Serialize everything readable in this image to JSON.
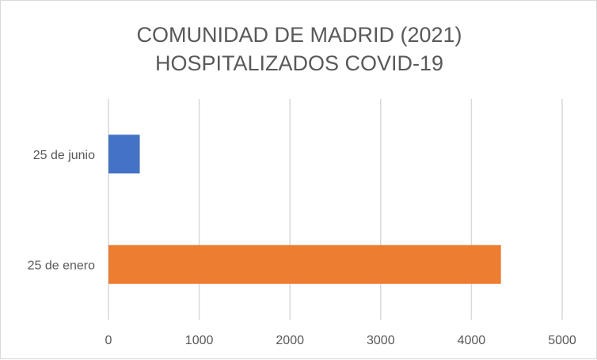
{
  "chart_data": {
    "type": "bar",
    "orientation": "horizontal",
    "title": [
      "COMUNIDAD DE MADRID (2021)",
      "HOSPITALIZADOS COVID-19"
    ],
    "categories": [
      "25 de junio",
      "25 de enero"
    ],
    "values": [
      345,
      4325
    ],
    "colors": [
      "#4472C4",
      "#ED7D31"
    ],
    "xlim": [
      0,
      5000
    ],
    "xticks": [
      "0",
      "1000",
      "2000",
      "3000",
      "4000",
      "5000"
    ],
    "grid": true,
    "legend": "none"
  }
}
